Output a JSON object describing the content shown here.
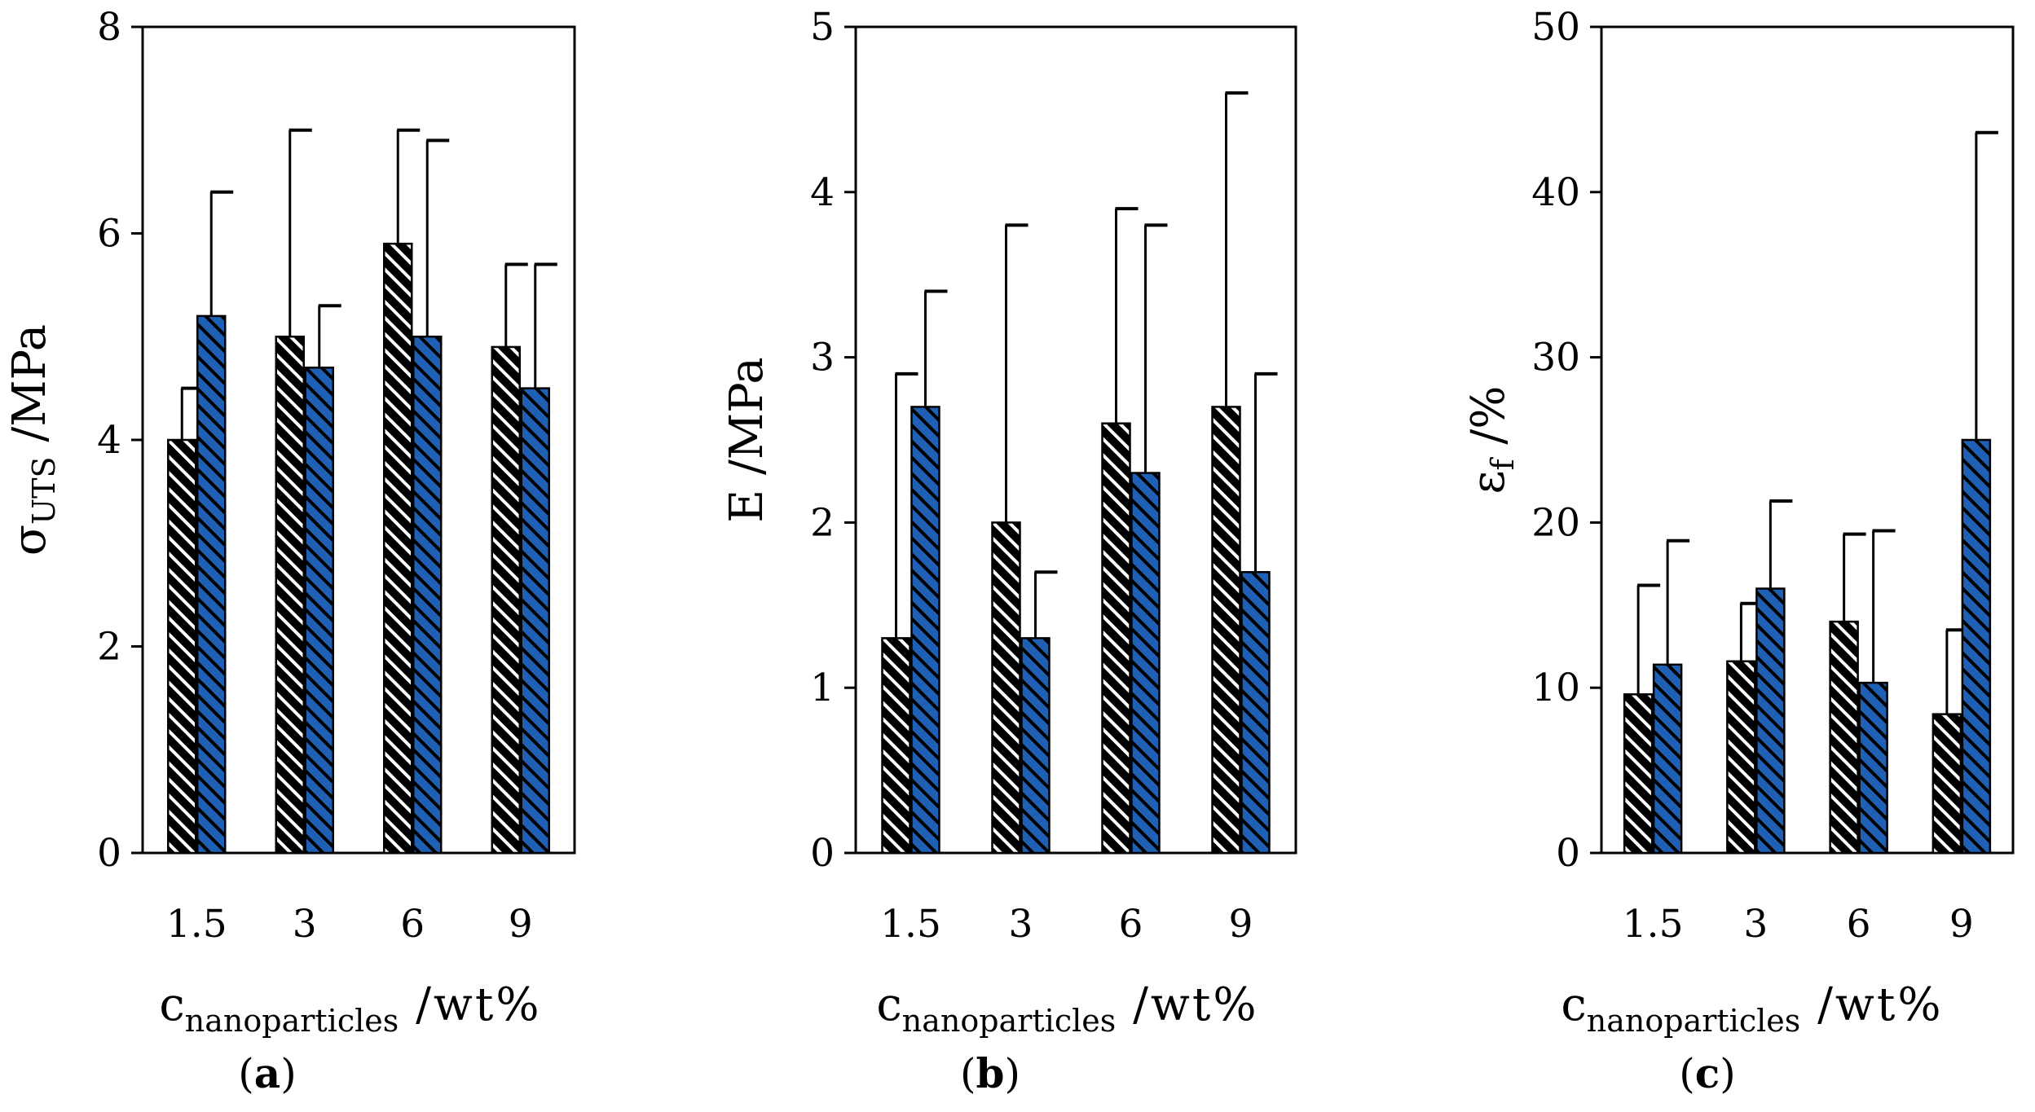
{
  "colors": {
    "series_a": "#000000",
    "series_b": "#1f5fb4",
    "axis": "#000000",
    "background": "#ffffff"
  },
  "chart_data": [
    {
      "type": "bar",
      "panel_label": "a",
      "categories": [
        "1.5",
        "3",
        "6",
        "9"
      ],
      "series": [
        {
          "name": "series-1 (black hatched)",
          "values": [
            4.0,
            5.0,
            5.9,
            4.9
          ],
          "err_low": [
            0.5,
            2.0,
            1.1,
            0.8
          ],
          "err_high": [
            0.5,
            2.0,
            1.1,
            0.8
          ]
        },
        {
          "name": "series-2 (blue hatched)",
          "values": [
            5.2,
            4.7,
            5.0,
            4.5
          ],
          "err_low": [
            1.2,
            0.6,
            1.9,
            1.2
          ],
          "err_high": [
            1.2,
            0.6,
            1.9,
            1.2
          ]
        }
      ],
      "ylabel": {
        "main": "σ",
        "sub": "UTS",
        "unit": " /MPa"
      },
      "xlabel": {
        "main": "c",
        "sub": "nanoparticles",
        "unit": " /wt%"
      },
      "ylim": [
        0,
        8
      ],
      "yticks": [
        0,
        2,
        4,
        6,
        8
      ],
      "ytick_labels": [
        "0",
        "2",
        "4",
        "6",
        "8"
      ]
    },
    {
      "type": "bar",
      "panel_label": "b",
      "categories": [
        "1.5",
        "3",
        "6",
        "9"
      ],
      "series": [
        {
          "name": "series-1 (black hatched)",
          "values": [
            1.3,
            2.0,
            2.6,
            2.7
          ],
          "err_low": [
            1.6,
            1.8,
            1.3,
            1.9
          ],
          "err_high": [
            1.6,
            1.8,
            1.3,
            1.9
          ]
        },
        {
          "name": "series-2 (blue hatched)",
          "values": [
            2.7,
            1.3,
            2.3,
            1.7
          ],
          "err_low": [
            0.7,
            0.4,
            1.5,
            1.2
          ],
          "err_high": [
            0.7,
            0.4,
            1.5,
            1.2
          ]
        }
      ],
      "ylabel": {
        "main": "E",
        "sub": "",
        "unit": " /MPa"
      },
      "xlabel": {
        "main": "c",
        "sub": "nanoparticles",
        "unit": " /wt%"
      },
      "ylim": [
        0,
        5
      ],
      "yticks": [
        0,
        1,
        2,
        3,
        4,
        5
      ],
      "ytick_labels": [
        "0",
        "1",
        "2",
        "3",
        "4",
        "5"
      ]
    },
    {
      "type": "bar",
      "panel_label": "c",
      "categories": [
        "1.5",
        "3",
        "6",
        "9"
      ],
      "series": [
        {
          "name": "series-1 (black hatched)",
          "values": [
            9.6,
            11.6,
            14.0,
            8.4
          ],
          "err_low": [
            6.6,
            3.5,
            5.3,
            5.1
          ],
          "err_high": [
            6.6,
            3.5,
            5.3,
            5.1
          ]
        },
        {
          "name": "series-2 (blue hatched)",
          "values": [
            11.4,
            16.0,
            10.3,
            25.0
          ],
          "err_low": [
            7.5,
            5.3,
            9.2,
            18.6
          ],
          "err_high": [
            7.5,
            5.3,
            9.2,
            18.6
          ]
        }
      ],
      "ylabel": {
        "main": "ε",
        "sub": "f",
        "unit": " /%"
      },
      "xlabel": {
        "main": "c",
        "sub": "nanoparticles",
        "unit": " /wt%"
      },
      "ylim": [
        0,
        50
      ],
      "yticks": [
        0,
        10,
        20,
        30,
        40,
        50
      ],
      "ytick_labels": [
        "0",
        "10",
        "20",
        "30",
        "40",
        "50"
      ]
    }
  ]
}
